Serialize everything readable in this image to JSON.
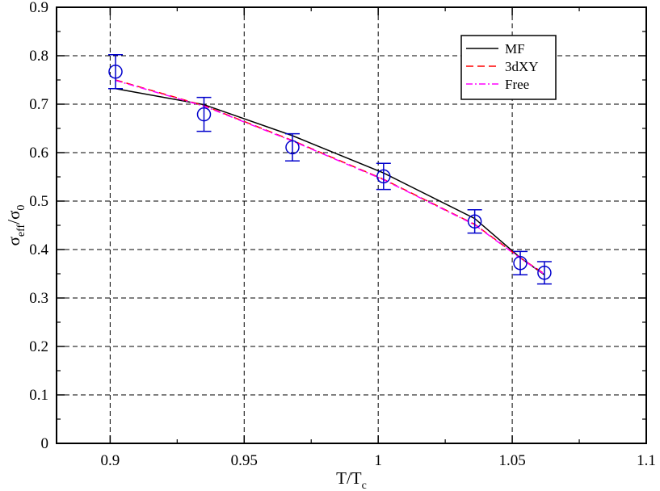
{
  "chart_data": {
    "type": "line",
    "xlabel": {
      "main": "T/T",
      "sub": "c"
    },
    "ylabel": {
      "main": "σ",
      "sub1": "eff",
      "mid": "/σ",
      "sub2": "0"
    },
    "xlim": [
      0.88,
      1.1
    ],
    "ylim": [
      0,
      0.9
    ],
    "grid": true,
    "legend_position": "top-right",
    "x_ticks": [
      0.9,
      0.95,
      1.0,
      1.05,
      1.1
    ],
    "x_tick_labels": [
      "0.9",
      "0.95",
      "1",
      "1.05",
      "1.1"
    ],
    "y_ticks": [
      0,
      0.1,
      0.2,
      0.3,
      0.4,
      0.5,
      0.6,
      0.7,
      0.8,
      0.9
    ],
    "y_tick_labels": [
      "0",
      "0.1",
      "0.2",
      "0.3",
      "0.4",
      "0.5",
      "0.6",
      "0.7",
      "0.8",
      "0.9"
    ],
    "series": [
      {
        "name": "MF",
        "color": "#000000",
        "dash": "solid",
        "x": [
          0.902,
          0.935,
          0.968,
          1.002,
          1.036,
          1.053,
          1.062
        ],
        "y": [
          0.732,
          0.699,
          0.635,
          0.558,
          0.464,
          0.383,
          0.348
        ]
      },
      {
        "name": "3dXY",
        "color": "#ff0000",
        "dash": "dashed",
        "x": [
          0.902,
          0.935,
          0.968,
          1.002,
          1.036,
          1.053,
          1.062
        ],
        "y": [
          0.75,
          0.697,
          0.625,
          0.545,
          0.452,
          0.383,
          0.35
        ]
      },
      {
        "name": "Free",
        "color": "#ff00ff",
        "dash": "dashdot",
        "x": [
          0.902,
          0.935,
          0.968,
          1.002,
          1.036,
          1.053,
          1.062
        ],
        "y": [
          0.749,
          0.696,
          0.624,
          0.544,
          0.451,
          0.382,
          0.349
        ]
      }
    ],
    "points": {
      "color": "#0000cc",
      "x": [
        0.902,
        0.935,
        0.968,
        1.002,
        1.036,
        1.053,
        1.062
      ],
      "y": [
        0.767,
        0.679,
        0.611,
        0.551,
        0.458,
        0.372,
        0.352
      ],
      "yerr": [
        0.035,
        0.035,
        0.028,
        0.027,
        0.024,
        0.024,
        0.023
      ]
    }
  }
}
